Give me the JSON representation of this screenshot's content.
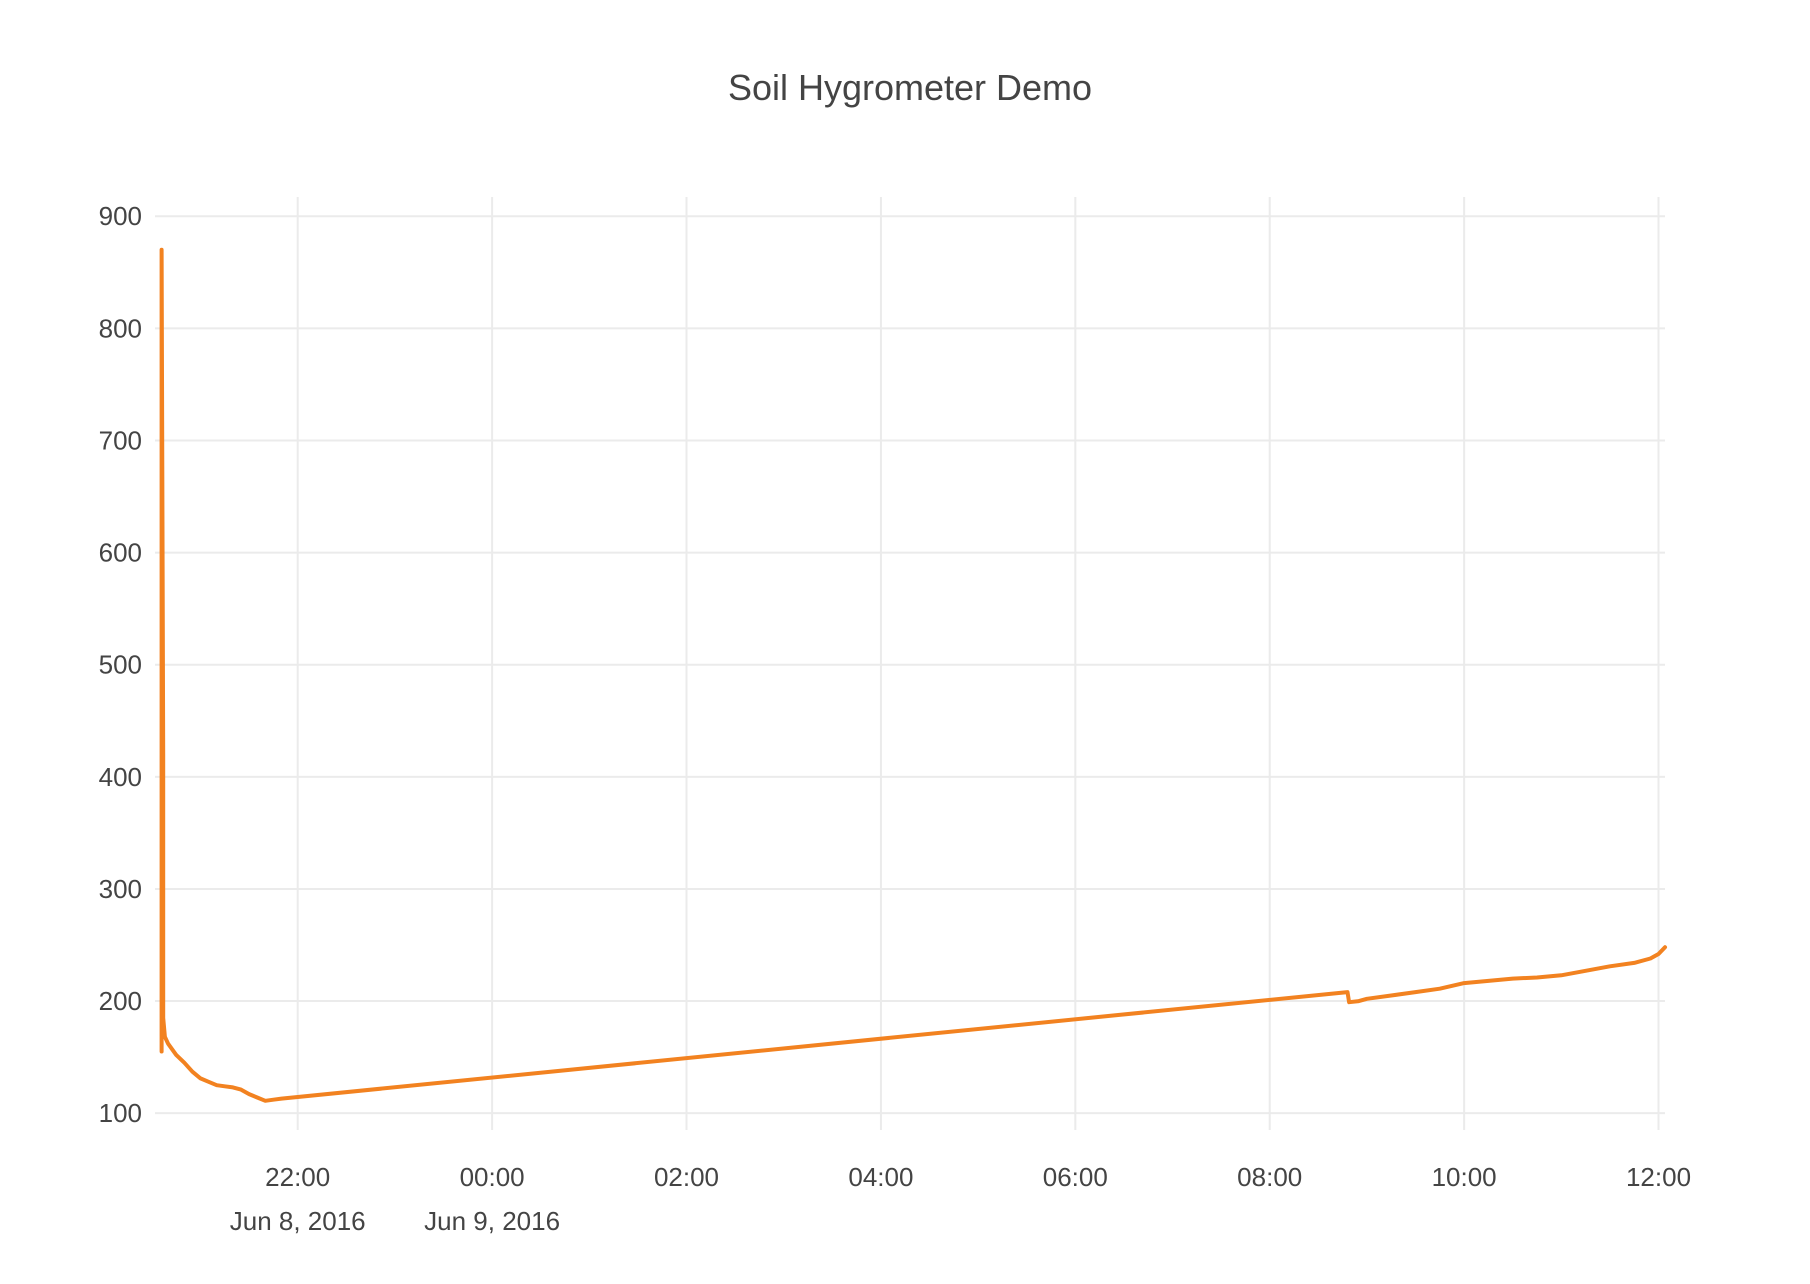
{
  "title": "Soil Hygrometer Demo",
  "colors": {
    "line": "#f28220",
    "grid": "#ebebeb",
    "text": "#444444",
    "background": "#ffffff"
  },
  "chart_data": {
    "type": "line",
    "title": "Soil Hygrometer Demo",
    "xlabel": "",
    "ylabel": "",
    "grid": true,
    "legend": "none",
    "xlim": [
      "2016-06-08 20:35",
      "2016-06-09 12:04"
    ],
    "ylim": [
      85,
      910
    ],
    "x_ticks": [
      {
        "value": "2016-06-08 22:00",
        "label": "22:00",
        "sublabel": "Jun 8, 2016"
      },
      {
        "value": "2016-06-09 00:00",
        "label": "00:00",
        "sublabel": "Jun 9, 2016"
      },
      {
        "value": "2016-06-09 02:00",
        "label": "02:00",
        "sublabel": ""
      },
      {
        "value": "2016-06-09 04:00",
        "label": "04:00",
        "sublabel": ""
      },
      {
        "value": "2016-06-09 06:00",
        "label": "06:00",
        "sublabel": ""
      },
      {
        "value": "2016-06-09 08:00",
        "label": "08:00",
        "sublabel": ""
      },
      {
        "value": "2016-06-09 10:00",
        "label": "10:00",
        "sublabel": ""
      },
      {
        "value": "2016-06-09 12:00",
        "label": "12:00",
        "sublabel": ""
      }
    ],
    "y_ticks": [
      100,
      200,
      300,
      400,
      500,
      600,
      700,
      800,
      900
    ],
    "series": [
      {
        "color": "#f28220",
        "x": [
          "2016-06-08 20:36",
          "2016-06-08 20:36",
          "2016-06-08 20:37",
          "2016-06-08 20:37",
          "2016-06-08 20:38",
          "2016-06-08 20:40",
          "2016-06-08 20:45",
          "2016-06-08 20:50",
          "2016-06-08 20:55",
          "2016-06-08 21:00",
          "2016-06-08 21:05",
          "2016-06-08 21:10",
          "2016-06-08 21:15",
          "2016-06-08 21:20",
          "2016-06-08 21:25",
          "2016-06-08 21:30",
          "2016-06-08 21:35",
          "2016-06-08 21:40",
          "2016-06-08 21:45",
          "2016-06-08 21:50",
          "2016-06-09 08:48",
          "2016-06-09 08:49",
          "2016-06-09 08:55",
          "2016-06-09 09:00",
          "2016-06-09 09:15",
          "2016-06-09 09:30",
          "2016-06-09 09:45",
          "2016-06-09 10:00",
          "2016-06-09 10:15",
          "2016-06-09 10:30",
          "2016-06-09 10:45",
          "2016-06-09 11:00",
          "2016-06-09 11:15",
          "2016-06-09 11:30",
          "2016-06-09 11:45",
          "2016-06-09 11:55",
          "2016-06-09 12:00",
          "2016-06-09 12:04"
        ],
        "y": [
          155,
          870,
          420,
          185,
          168,
          162,
          152,
          145,
          137,
          131,
          128,
          125,
          124,
          123,
          121,
          117,
          114,
          111,
          112,
          113,
          208,
          199,
          200,
          202,
          205,
          208,
          211,
          216,
          218,
          220,
          221,
          223,
          227,
          231,
          234,
          238,
          242,
          248
        ]
      }
    ]
  }
}
